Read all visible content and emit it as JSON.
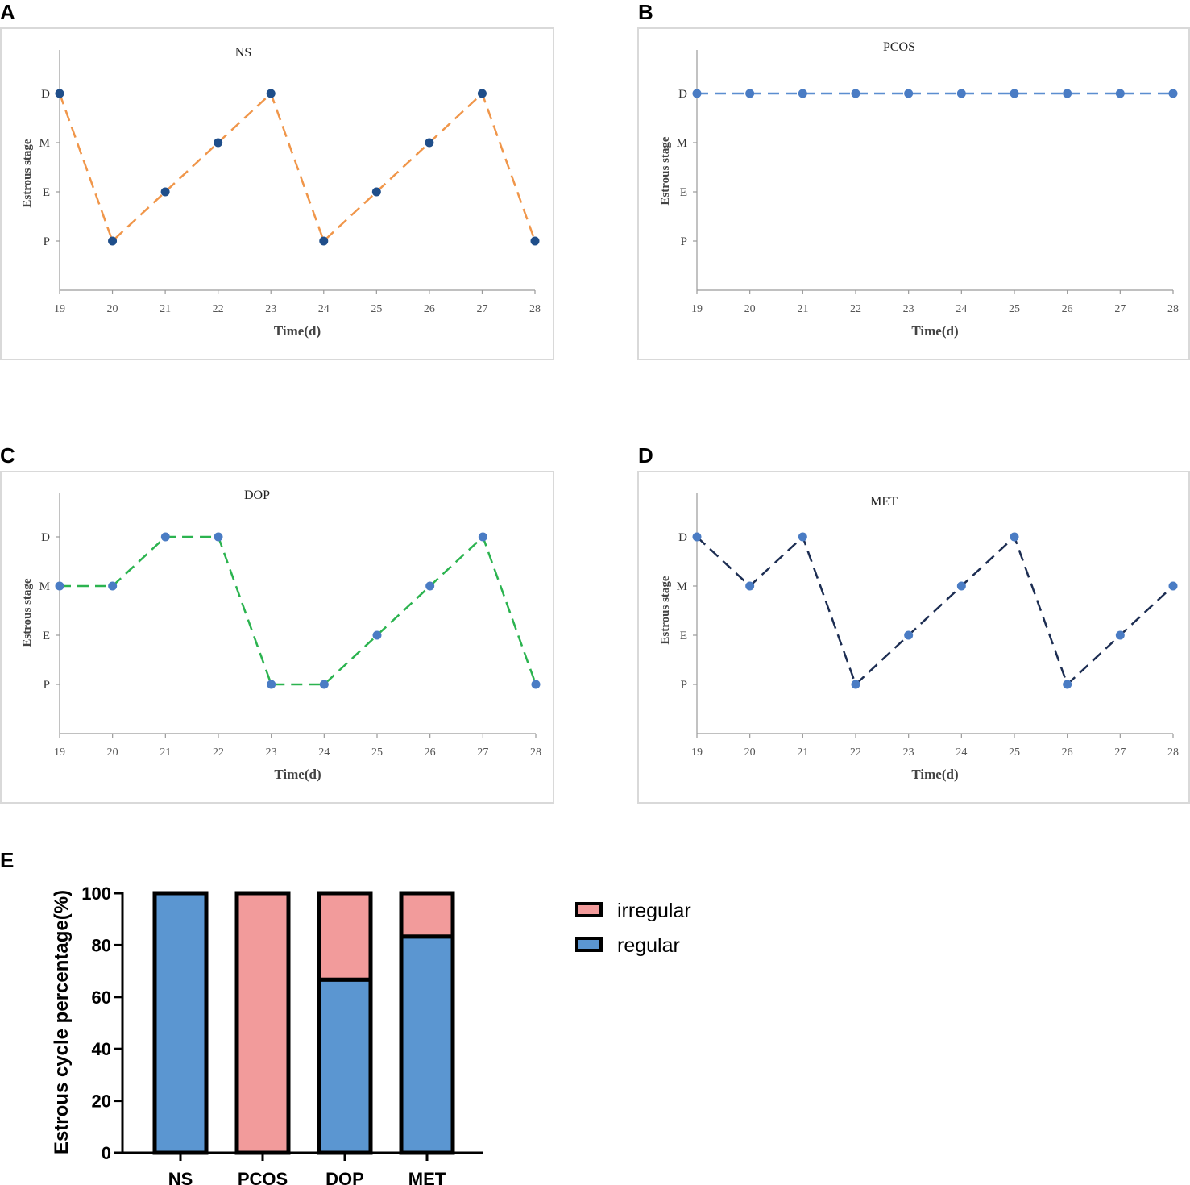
{
  "panel_letters": {
    "a": "A",
    "b": "B",
    "c": "C",
    "d": "D",
    "e": "E"
  },
  "chart_data": [
    {
      "id": "A",
      "type": "line",
      "title": "NS",
      "xlabel": "Time(d)",
      "ylabel": "Estrous stage",
      "x": [
        19,
        20,
        21,
        22,
        23,
        24,
        25,
        26,
        27,
        28
      ],
      "y_categories": [
        "P",
        "E",
        "M",
        "D"
      ],
      "y": [
        "D",
        "P",
        "E",
        "M",
        "D",
        "P",
        "E",
        "M",
        "D",
        "P"
      ],
      "line_color": "#f0964a",
      "marker_color": "#1f4e8a",
      "line_style": "dashed"
    },
    {
      "id": "B",
      "type": "line",
      "title": "PCOS",
      "xlabel": "Time(d)",
      "ylabel": "Estrous stage",
      "x": [
        19,
        20,
        21,
        22,
        23,
        24,
        25,
        26,
        27,
        28
      ],
      "y_categories": [
        "P",
        "E",
        "M",
        "D"
      ],
      "y": [
        "D",
        "D",
        "D",
        "D",
        "D",
        "D",
        "D",
        "D",
        "D",
        "D"
      ],
      "line_color": "#5b8ed0",
      "marker_color": "#4a7cc4",
      "line_style": "dashed"
    },
    {
      "id": "C",
      "type": "line",
      "title": "DOP",
      "xlabel": "Time(d)",
      "ylabel": "Estrous stage",
      "x": [
        19,
        20,
        21,
        22,
        23,
        24,
        25,
        26,
        27,
        28
      ],
      "y_categories": [
        "P",
        "E",
        "M",
        "D"
      ],
      "y": [
        "M",
        "M",
        "D",
        "D",
        "P",
        "P",
        "E",
        "M",
        "D",
        "P"
      ],
      "line_color": "#2bb34f",
      "marker_color": "#4a7cc4",
      "line_style": "dashed"
    },
    {
      "id": "D",
      "type": "line",
      "title": "MET",
      "xlabel": "Time(d)",
      "ylabel": "Estrous stage",
      "x": [
        19,
        20,
        21,
        22,
        23,
        24,
        25,
        26,
        27,
        28
      ],
      "y_categories": [
        "P",
        "E",
        "M",
        "D"
      ],
      "y": [
        "D",
        "M",
        "D",
        "P",
        "E",
        "M",
        "D",
        "P",
        "E",
        "M"
      ],
      "line_color": "#1c2d52",
      "marker_color": "#4a7cc4",
      "line_style": "dashed"
    },
    {
      "id": "E",
      "type": "bar",
      "stacked": true,
      "ylabel": "Estrous cycle percentage(%)",
      "categories": [
        "NS",
        "PCOS",
        "DOP",
        "MET"
      ],
      "ylim": [
        0,
        100
      ],
      "yticks": [
        "0",
        "20",
        "40",
        "60",
        "80",
        "100"
      ],
      "series": [
        {
          "name": "regular",
          "values": [
            100,
            0,
            66.7,
            83.3
          ],
          "color": "#5b96d1"
        },
        {
          "name": "irregular",
          "values": [
            0,
            100,
            33.3,
            16.7
          ],
          "color": "#f29b9b"
        }
      ],
      "legend": [
        "irregular",
        "regular"
      ],
      "legend_position": "right"
    }
  ]
}
